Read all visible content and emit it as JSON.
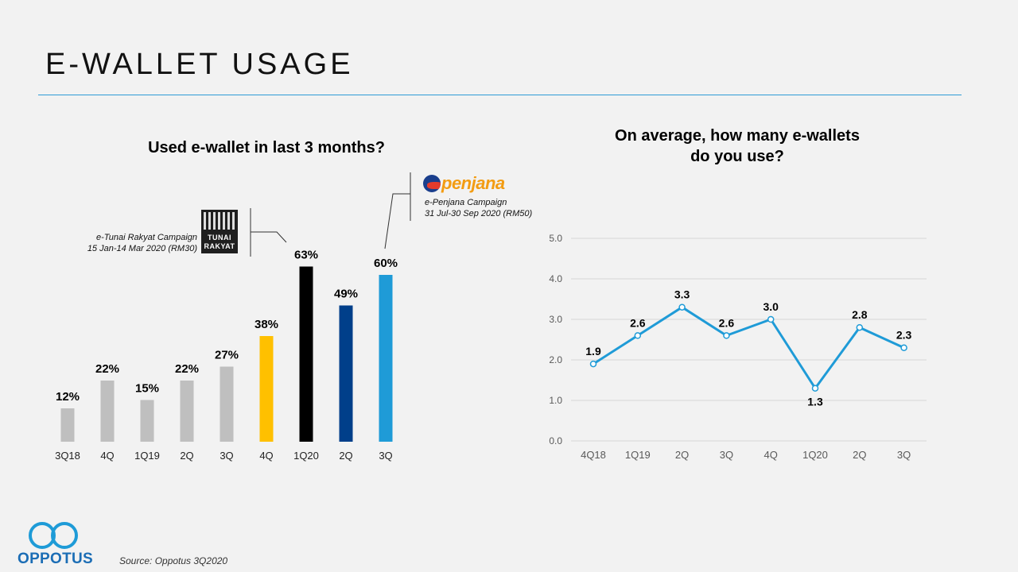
{
  "page": {
    "title": "E-WALLET USAGE",
    "source": "Source: Oppotus 3Q2020"
  },
  "brand": {
    "name": "OPPOTUS"
  },
  "annotations": {
    "tunai_line1": "e-Tunai Rakyat Campaign",
    "tunai_line2": "15 Jan-14 Mar 2020 (RM30)",
    "tunai_badge_line1": "TUNAI",
    "tunai_badge_line2": "RAKYAT",
    "penjana_logo": "penjana",
    "penjana_line1": "e-Penjana Campaign",
    "penjana_line2": "31 Jul-30 Sep 2020 (RM50)"
  },
  "chart_data": [
    {
      "type": "bar",
      "title": "Used e-wallet in last 3 months?",
      "categories": [
        "3Q18",
        "4Q",
        "1Q19",
        "2Q",
        "3Q",
        "4Q",
        "1Q20",
        "2Q",
        "3Q"
      ],
      "values": [
        12,
        22,
        15,
        22,
        27,
        38,
        63,
        49,
        60
      ],
      "labels": [
        "12%",
        "22%",
        "15%",
        "22%",
        "27%",
        "38%",
        "63%",
        "49%",
        "60%"
      ],
      "colors": [
        "#bfbfbf",
        "#bfbfbf",
        "#bfbfbf",
        "#bfbfbf",
        "#bfbfbf",
        "#ffc000",
        "#000000",
        "#003f8a",
        "#1f9bd7"
      ],
      "ylim": [
        0,
        100
      ],
      "xlabel": "",
      "ylabel": ""
    },
    {
      "type": "line",
      "title": "On average, how many e-wallets do you use?",
      "title_lines": [
        "On average, how many e-wallets",
        "do you use?"
      ],
      "categories": [
        "4Q18",
        "1Q19",
        "2Q",
        "3Q",
        "4Q",
        "1Q20",
        "2Q",
        "3Q"
      ],
      "values": [
        1.9,
        2.6,
        3.3,
        2.6,
        3.0,
        1.3,
        2.8,
        2.3
      ],
      "labels": [
        "1.9",
        "2.6",
        "3.3",
        "2.6",
        "3.0",
        "1.3",
        "2.8",
        "2.3"
      ],
      "yticks": [
        "0.0",
        "1.0",
        "2.0",
        "3.0",
        "4.0",
        "5.0"
      ],
      "ylim": [
        0,
        5
      ],
      "grid": true,
      "color": "#1f9bd7",
      "xlabel": "",
      "ylabel": ""
    }
  ]
}
